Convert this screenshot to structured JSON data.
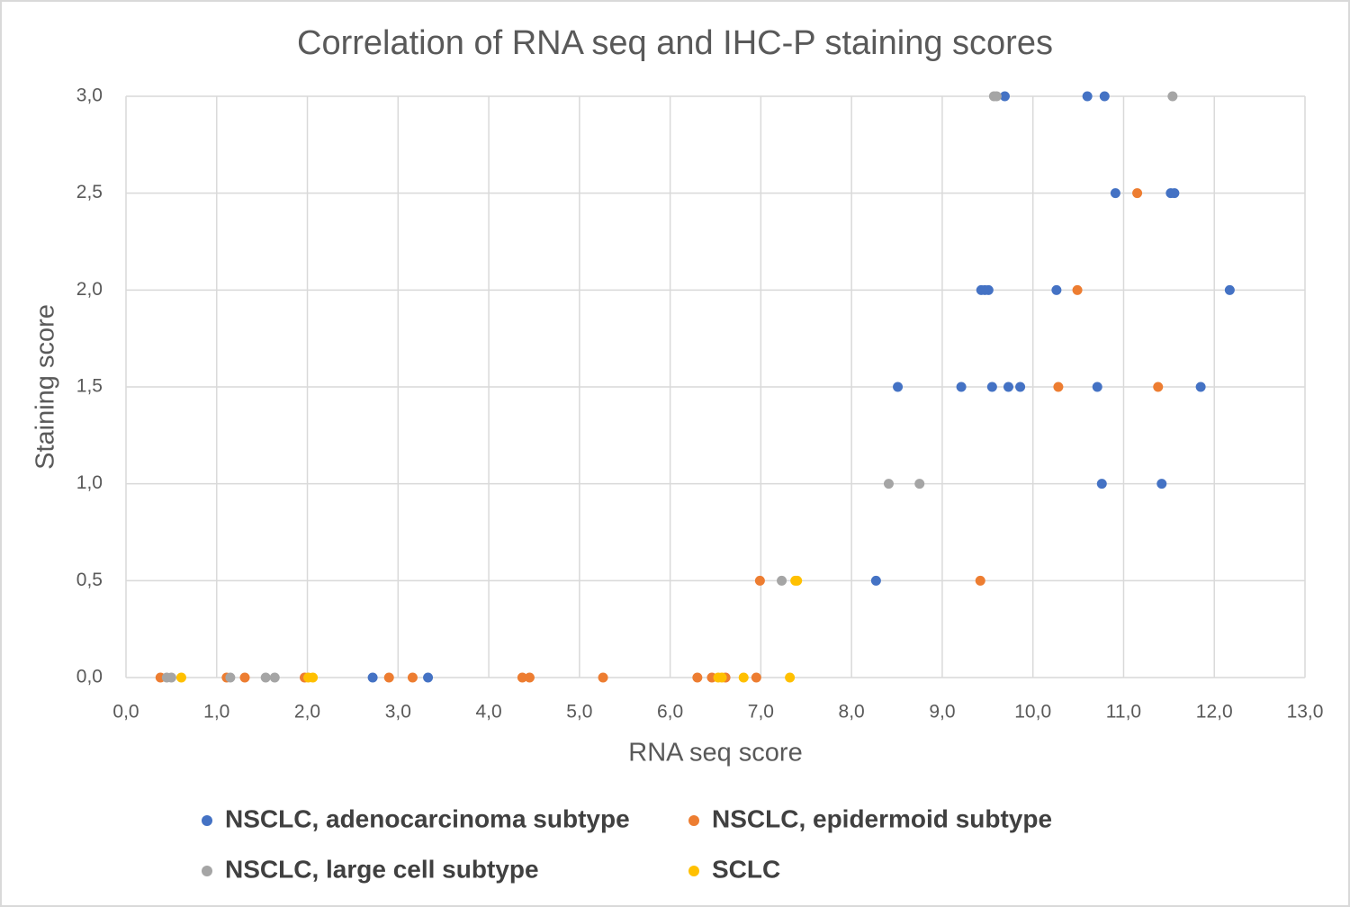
{
  "chart_data": {
    "type": "scatter",
    "title": "Correlation of RNA seq and IHC-P staining scores",
    "x_label": "RNA seq score",
    "y_label": "Staining score",
    "xlim": [
      0,
      13
    ],
    "ylim": [
      0,
      3
    ],
    "xticks": [
      {
        "value": 0,
        "label": "0,0"
      },
      {
        "value": 1,
        "label": "1,0"
      },
      {
        "value": 2,
        "label": "2,0"
      },
      {
        "value": 3,
        "label": "3,0"
      },
      {
        "value": 4,
        "label": "4,0"
      },
      {
        "value": 5,
        "label": "5,0"
      },
      {
        "value": 6,
        "label": "6,0"
      },
      {
        "value": 7,
        "label": "7,0"
      },
      {
        "value": 8,
        "label": "8,0"
      },
      {
        "value": 9,
        "label": "9,0"
      },
      {
        "value": 10,
        "label": "10,0"
      },
      {
        "value": 11,
        "label": "11,0"
      },
      {
        "value": 12,
        "label": "12,0"
      },
      {
        "value": 13,
        "label": "13,0"
      }
    ],
    "yticks": [
      {
        "value": 0,
        "label": "0,0"
      },
      {
        "value": 0.5,
        "label": "0,5"
      },
      {
        "value": 1,
        "label": "1,0"
      },
      {
        "value": 1.5,
        "label": "1,5"
      },
      {
        "value": 2,
        "label": "2,0"
      },
      {
        "value": 2.5,
        "label": "2,5"
      },
      {
        "value": 3,
        "label": "3,0"
      }
    ],
    "grid": true,
    "legend": "bottom",
    "series": [
      {
        "name": "NSCLC, adenocarcinoma subtype",
        "color": "#4472c4",
        "x": [
          9.69,
          10.6,
          10.79,
          10.91,
          11.52,
          11.56,
          9.43,
          9.47,
          9.51,
          10.26,
          12.17,
          8.51,
          9.21,
          9.55,
          9.73,
          9.86,
          10.71,
          11.85,
          10.76,
          11.42,
          8.27,
          2.72,
          3.33
        ],
        "y": [
          3,
          3,
          3,
          2.5,
          2.5,
          2.5,
          2,
          2,
          2,
          2,
          2,
          1.5,
          1.5,
          1.5,
          1.5,
          1.5,
          1.5,
          1.5,
          1,
          1,
          0.5,
          0,
          0
        ]
      },
      {
        "name": "NSCLC, epidermoid subtype",
        "color": "#ed7d31",
        "x": [
          11.15,
          10.49,
          10.28,
          11.38,
          6.99,
          9.42,
          0.38,
          1.11,
          1.31,
          1.97,
          2.9,
          3.16,
          4.37,
          4.45,
          5.26,
          6.3,
          6.46,
          6.61,
          6.95
        ],
        "y": [
          2.5,
          2,
          1.5,
          1.5,
          0.5,
          0.5,
          0,
          0,
          0,
          0,
          0,
          0,
          0,
          0,
          0,
          0,
          0,
          0,
          0
        ]
      },
      {
        "name": "NSCLC, large cell subtype",
        "color": "#a5a5a5",
        "x": [
          9.57,
          9.6,
          11.54,
          8.41,
          8.75,
          7.23,
          0.45,
          0.5,
          1.15,
          1.54,
          1.64
        ],
        "y": [
          3,
          3,
          3,
          1,
          1,
          0.5,
          0,
          0,
          0,
          0,
          0
        ]
      },
      {
        "name": "SCLC",
        "color": "#ffc000",
        "x": [
          7.38,
          7.4,
          0.61,
          2.01,
          2.06,
          6.53,
          6.57,
          6.81,
          7.32
        ],
        "y": [
          0.5,
          0.5,
          0,
          0,
          0,
          0,
          0,
          0,
          0
        ]
      }
    ]
  }
}
